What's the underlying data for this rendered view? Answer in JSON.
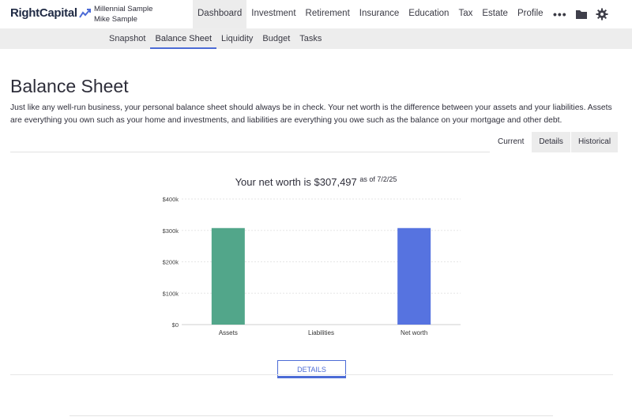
{
  "app": {
    "logo_text": "RightCapital"
  },
  "client": {
    "household": "Millennial Sample",
    "user": "Mike Sample"
  },
  "nav": {
    "items": [
      "Dashboard",
      "Investment",
      "Retirement",
      "Insurance",
      "Education",
      "Tax",
      "Estate",
      "Profile"
    ],
    "more_label": "•••",
    "icons": [
      "more-icon",
      "folder-icon",
      "gear-icon"
    ]
  },
  "subnav": {
    "items": [
      "Snapshot",
      "Balance Sheet",
      "Liquidity",
      "Budget",
      "Tasks"
    ],
    "active": "Balance Sheet"
  },
  "page": {
    "title": "Balance Sheet",
    "intro": "Just like any well-run business, your personal balance sheet should always be in check. Your net worth is the difference between your assets and your liabilities. Assets are everything you own such as your home and investments, and liabilities are everything you owe such as the balance on your mortgage and other debt."
  },
  "view_tabs": {
    "items": [
      "Current",
      "Details",
      "Historical"
    ],
    "active": "Current"
  },
  "summary": {
    "prefix": "Your net worth is ",
    "value": "$307,497",
    "as_of": "as of 7/2/25"
  },
  "chart_data": {
    "type": "bar",
    "categories": [
      "Assets",
      "Liabilities",
      "Net worth"
    ],
    "values": [
      307497,
      0,
      307497
    ],
    "ylim": [
      0,
      400000
    ],
    "yticks": [
      0,
      100000,
      200000,
      300000,
      400000
    ],
    "ytick_labels": [
      "$0",
      "$100k",
      "$200k",
      "$300k",
      "$400k"
    ],
    "colors": [
      "#52a68a",
      "#5b9bd5",
      "#5673e0"
    ],
    "grid": true
  },
  "details_button": {
    "label": "DETAILS"
  },
  "colors": {
    "accent": "#4c6bd6",
    "asset": "#52a68a",
    "networth": "#5673e0"
  }
}
